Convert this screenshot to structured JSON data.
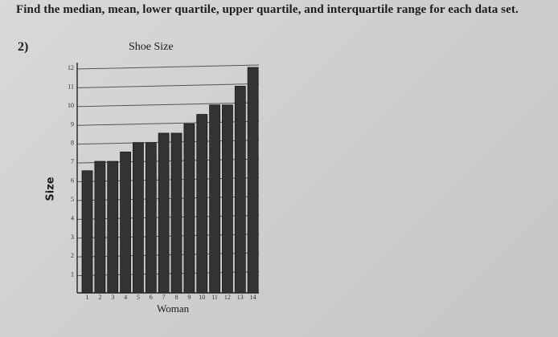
{
  "instruction": "Find the median, mean, lower quartile, upper quartile, and interquartile range for each data set.",
  "problem_number": "2)",
  "chart_data": {
    "type": "bar",
    "title": "Shoe Size",
    "xlabel": "Woman",
    "ylabel": "Size",
    "categories": [
      "1",
      "2",
      "3",
      "4",
      "5",
      "6",
      "7",
      "8",
      "9",
      "10",
      "11",
      "12",
      "13",
      "14"
    ],
    "values": [
      6.5,
      7,
      7,
      7.5,
      8,
      8,
      8.5,
      8.5,
      9,
      9.5,
      10,
      10,
      11,
      12
    ],
    "y_ticks": [
      "1",
      "2",
      "3",
      "4",
      "5",
      "6",
      "7",
      "8",
      "9",
      "10",
      "11",
      "12"
    ],
    "ylim": [
      0,
      12
    ],
    "grid": true,
    "bar_color": "#333333"
  }
}
